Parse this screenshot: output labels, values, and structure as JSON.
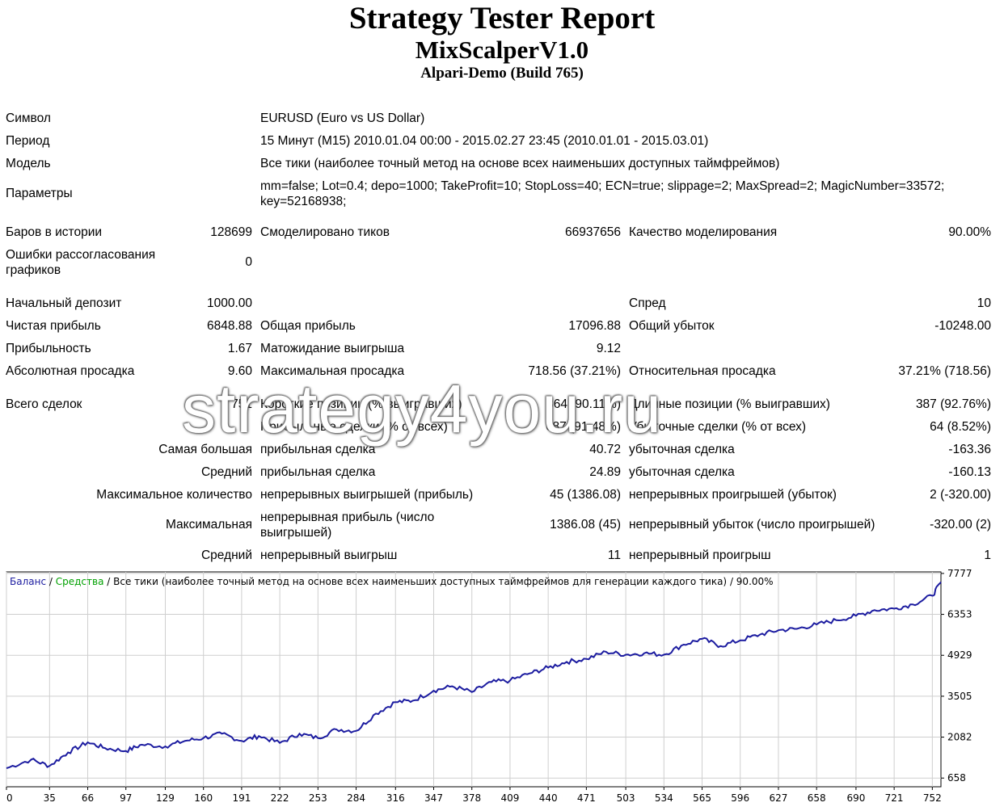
{
  "report": {
    "title": "Strategy Tester Report",
    "expert": "MixScalperV1.0",
    "server": "Alpari-Demo (Build 765)"
  },
  "settings": {
    "symbol_label": "Символ",
    "symbol_value": "EURUSD (Euro vs US Dollar)",
    "period_label": "Период",
    "period_value": "15 Минут (M15) 2010.01.04 00:00 - 2015.02.27 23:45 (2010.01.01 - 2015.03.01)",
    "model_label": "Модель",
    "model_value": "Все тики (наиболее точный метод на основе всех наименьших доступных таймфреймов)",
    "params_label": "Параметры",
    "params_value": "mm=false; Lot=0.4; depo=1000; TakeProfit=10; StopLoss=40; ECN=true; slippage=2; MaxSpread=2; MagicNumber=33572; key=52168938;"
  },
  "history": {
    "bars_label": "Баров в истории",
    "bars_value": "128699",
    "ticks_label": "Смоделировано тиков",
    "ticks_value": "66937656",
    "quality_label": "Качество моделирования",
    "quality_value": "90.00%",
    "errors_label": "Ошибки рассогласования графиков",
    "errors_value": "0"
  },
  "results": {
    "deposit_label": "Начальный депозит",
    "deposit_value": "1000.00",
    "spread_label": "Спред",
    "spread_value": "10",
    "net_label": "Чистая прибыль",
    "net_value": "6848.88",
    "gross_profit_label": "Общая прибыль",
    "gross_profit_value": "17096.88",
    "gross_loss_label": "Общий убыток",
    "gross_loss_value": "-10248.00",
    "pf_label": "Прибыльность",
    "pf_value": "1.67",
    "payoff_label": "Матожидание выигрыша",
    "payoff_value": "9.12",
    "abs_dd_label": "Абсолютная просадка",
    "abs_dd_value": "9.60",
    "max_dd_label": "Максимальная просадка",
    "max_dd_value": "718.56 (37.21%)",
    "rel_dd_label": "Относительная просадка",
    "rel_dd_value": "37.21% (718.56)"
  },
  "trades": {
    "total_label": "Всего сделок",
    "total_value": "751",
    "short_label": "Короткие позиции (% выигравших)",
    "short_value": "364 (90.11%)",
    "long_label": "Длинные позиции (% выигравших)",
    "long_value": "387 (92.76%)",
    "profit_trades_label": "Прибыльные сделки (% от всех)",
    "profit_trades_value": "687 (91.48%)",
    "loss_trades_label": "Убыточные сделки (% от всех)",
    "loss_trades_value": "64 (8.52%)",
    "largest_label": "Самая большая",
    "largest_profit_label": "прибыльная сделка",
    "largest_profit_value": "40.72",
    "largest_loss_label": "убыточная сделка",
    "largest_loss_value": "-163.36",
    "average_label": "Средний",
    "average_profit_label": "прибыльная сделка",
    "average_profit_value": "24.89",
    "average_loss_label": "убыточная сделка",
    "average_loss_value": "-160.13",
    "max_count_label": "Максимальное количество",
    "max_wins_label": "непрерывных выигрышей (прибыль)",
    "max_wins_value": "45 (1386.08)",
    "max_losses_label": "непрерывных проигрышей (убыток)",
    "max_losses_value": "2 (-320.00)",
    "maximal_label": "Максимальная",
    "maximal_profit_label": "непрерывная прибыль (число выигрышей)",
    "maximal_profit_value": "1386.08 (45)",
    "maximal_loss_label": "непрерывный убыток (число проигрышей)",
    "maximal_loss_value": "-320.00 (2)",
    "avg_consec_label": "Средний",
    "avg_consec_wins_label": "непрерывный выигрыш",
    "avg_consec_wins_value": "11",
    "avg_consec_losses_label": "непрерывный проигрыш",
    "avg_consec_losses_value": "1"
  },
  "watermark": "strategy4you.ru",
  "chart_data": {
    "type": "line",
    "legend": {
      "balance": "Баланс",
      "sep1": " / ",
      "equity": "Средства",
      "sep2": " / ",
      "model": "Все тики (наиболее точный метод на основе всех наименьших доступных таймфреймов для генерации каждого тика)",
      "sep3": " / ",
      "quality": "90.00%"
    },
    "colors": {
      "balance": "#1c1ca0",
      "equity": "#00a000",
      "grid": "#cfcfcf",
      "frame": "#000000"
    },
    "x_ticks": [
      0,
      35,
      66,
      97,
      129,
      160,
      191,
      222,
      253,
      284,
      316,
      347,
      378,
      409,
      440,
      471,
      503,
      534,
      565,
      596,
      627,
      658,
      690,
      721,
      752
    ],
    "y_ticks": [
      658,
      2082,
      3505,
      4929,
      6353,
      7777
    ],
    "xlim": [
      0,
      759
    ],
    "ylim": [
      355,
      7830
    ],
    "x": [
      0,
      20,
      35,
      50,
      66,
      80,
      97,
      110,
      129,
      145,
      160,
      175,
      191,
      205,
      222,
      238,
      253,
      268,
      284,
      300,
      316,
      330,
      347,
      362,
      378,
      394,
      409,
      425,
      440,
      455,
      471,
      487,
      503,
      518,
      534,
      550,
      565,
      580,
      596,
      612,
      627,
      642,
      658,
      674,
      690,
      705,
      721,
      736,
      752,
      759
    ],
    "y": [
      1000,
      1300,
      1080,
      1550,
      1900,
      1700,
      1600,
      1820,
      1760,
      1950,
      2050,
      2200,
      1950,
      2120,
      1880,
      2200,
      2050,
      2350,
      2300,
      2900,
      3300,
      3350,
      3700,
      3850,
      3650,
      4000,
      4050,
      4300,
      4500,
      4700,
      4800,
      5050,
      4950,
      5000,
      4950,
      5300,
      5500,
      5250,
      5450,
      5650,
      5800,
      5850,
      6000,
      6150,
      6300,
      6500,
      6550,
      6700,
      7000,
      7480
    ]
  }
}
